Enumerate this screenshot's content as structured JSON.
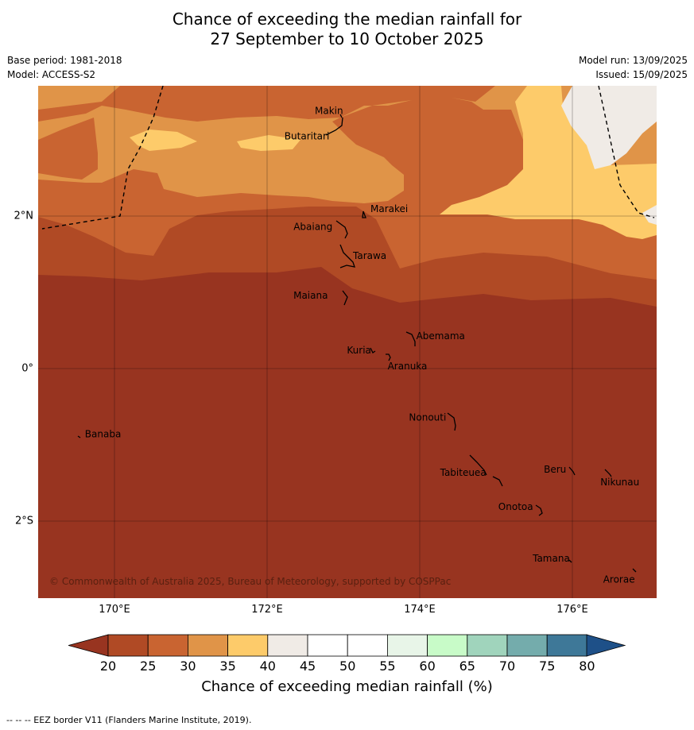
{
  "title": {
    "line1": "Chance of exceeding the median rainfall for",
    "line2": "27 September to 10 October 2025"
  },
  "meta": {
    "base_period": "Base period: 1981-2018",
    "model": "Model: ACCESS-S2",
    "model_run": "Model run: 13/09/2025",
    "issued": "Issued: 15/09/2025"
  },
  "map": {
    "lon_range": [
      169,
      177.1
    ],
    "lat_range": [
      -3,
      3.7
    ],
    "lon_ticks": [
      "170°E",
      "172°E",
      "174°E",
      "176°E"
    ],
    "lat_ticks": [
      "2°N",
      "0°",
      "2°S"
    ],
    "copyright": "© Commonwealth of Australia 2025, Bureau of Meteorology, supported by COSPPac",
    "islands": [
      {
        "name": "Makin",
        "lon": 173.0,
        "lat": 3.35
      },
      {
        "name": "Butaritari",
        "lon": 172.8,
        "lat": 3.1
      },
      {
        "name": "Marakei",
        "lon": 173.25,
        "lat": 2.0
      },
      {
        "name": "Abaiang",
        "lon": 172.95,
        "lat": 1.85
      },
      {
        "name": "Tarawa",
        "lon": 173.0,
        "lat": 1.45
      },
      {
        "name": "Maiana",
        "lon": 172.97,
        "lat": 0.95
      },
      {
        "name": "Abemama",
        "lon": 173.85,
        "lat": 0.4
      },
      {
        "name": "Kuria",
        "lon": 173.4,
        "lat": 0.23
      },
      {
        "name": "Aranuka",
        "lon": 173.6,
        "lat": 0.17
      },
      {
        "name": "Nonouti",
        "lon": 174.4,
        "lat": -0.65
      },
      {
        "name": "Banaba",
        "lon": 169.55,
        "lat": -0.87
      },
      {
        "name": "Tabiteuea",
        "lon": 174.85,
        "lat": -1.35
      },
      {
        "name": "Beru",
        "lon": 175.98,
        "lat": -1.33
      },
      {
        "name": "Nikunau",
        "lon": 176.45,
        "lat": -1.35
      },
      {
        "name": "Onotoa",
        "lon": 175.55,
        "lat": -1.8
      },
      {
        "name": "Tamana",
        "lon": 175.98,
        "lat": -2.5
      },
      {
        "name": "Arorae",
        "lon": 176.82,
        "lat": -2.65
      }
    ]
  },
  "colorbar": {
    "ticks": [
      "20",
      "25",
      "30",
      "35",
      "40",
      "45",
      "50",
      "55",
      "60",
      "65",
      "70",
      "75",
      "80"
    ],
    "colors": {
      "below_20": "#983420",
      "20_25": "#b04a25",
      "25_30": "#c96431",
      "30_35": "#e09448",
      "35_40": "#fdcb6a",
      "40_45": "#f0ebe6",
      "45_50": "#ffffff",
      "50_55": "#ffffff",
      "55_60": "#e8f5e8",
      "60_65": "#c8fbc8",
      "65_70": "#a0d4bc",
      "70_75": "#74acac",
      "75_80": "#3e7898",
      "above_80": "#1e5088"
    },
    "label": "Chance of exceeding median rainfall (%)"
  },
  "footnote": "--  --  -- EEZ border V11 (Flanders Marine Institute, 2019)."
}
